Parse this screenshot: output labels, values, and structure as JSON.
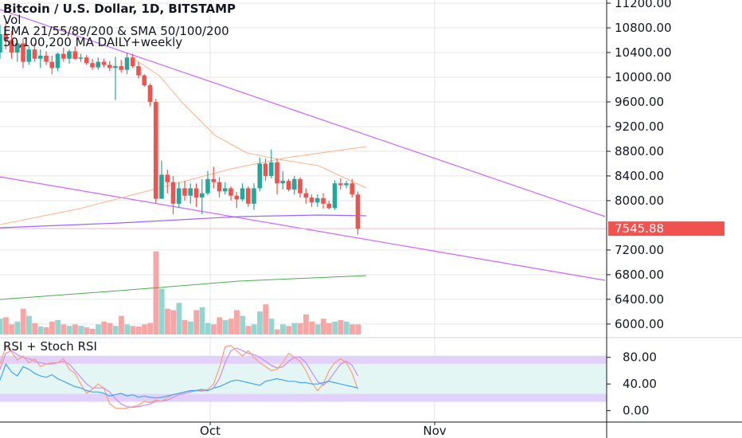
{
  "legend": {
    "title": "Bitcoin / U.S. Dollar, 1D, BITSTAMP",
    "vol": "Vol",
    "ema": "EMA 21/55/89/200 & SMA 50/100/200",
    "ma": "50,100,200 MA DAILY+weekly"
  },
  "rsi_title": "RSI + Stoch RSI",
  "chart_data": {
    "type": "candlestick",
    "symbol": "Bitcoin / U.S. Dollar",
    "interval": "1D",
    "exchange": "BITSTAMP",
    "price_axis": {
      "ticks": [
        "11200.00",
        "10800.00",
        "10400.00",
        "10000.00",
        "9600.00",
        "9200.00",
        "8800.00",
        "8400.00",
        "8000.00",
        "7200.00",
        "6800.00",
        "6400.00",
        "6000.00"
      ],
      "range": [
        5700,
        11300
      ]
    },
    "last_price": "7545.88",
    "time_axis": {
      "labels": [
        "Oct",
        "Nov"
      ]
    },
    "candles": [
      [
        10400,
        10850,
        10300,
        10700
      ],
      [
        10700,
        10900,
        10450,
        10600
      ],
      [
        10600,
        10750,
        10300,
        10400
      ],
      [
        10400,
        10600,
        10250,
        10550
      ],
      [
        10550,
        10620,
        10150,
        10250
      ],
      [
        10250,
        10500,
        10200,
        10450
      ],
      [
        10450,
        10550,
        10250,
        10300
      ],
      [
        10300,
        10450,
        10150,
        10350
      ],
      [
        10350,
        10420,
        10200,
        10250
      ],
      [
        10250,
        10350,
        10050,
        10150
      ],
      [
        10150,
        10400,
        10100,
        10380
      ],
      [
        10380,
        10480,
        10250,
        10300
      ],
      [
        10300,
        10450,
        10220,
        10420
      ],
      [
        10420,
        10500,
        10280,
        10300
      ],
      [
        10300,
        10380,
        10250,
        10320
      ],
      [
        10320,
        10360,
        10200,
        10230
      ],
      [
        10230,
        10300,
        10120,
        10160
      ],
      [
        10160,
        10320,
        10120,
        10250
      ],
      [
        10250,
        10300,
        10160,
        10200
      ],
      [
        10200,
        10260,
        10100,
        10150
      ],
      [
        10150,
        10330,
        9630,
        10180
      ],
      [
        10180,
        10280,
        10080,
        10120
      ],
      [
        10120,
        10400,
        10050,
        10320
      ],
      [
        10320,
        10380,
        10150,
        10180
      ],
      [
        10180,
        10250,
        9980,
        10030
      ],
      [
        10030,
        10050,
        9850,
        9870
      ],
      [
        9870,
        9900,
        9530,
        9600
      ],
      [
        9600,
        9650,
        7950,
        8030
      ],
      [
        8030,
        8650,
        8030,
        8420
      ],
      [
        8420,
        8500,
        8120,
        8300
      ],
      [
        8300,
        8400,
        7780,
        7950
      ],
      [
        7950,
        8300,
        7880,
        8200
      ],
      [
        8200,
        8320,
        8000,
        8080
      ],
      [
        8080,
        8280,
        7950,
        8200
      ],
      [
        8200,
        8280,
        7900,
        8050
      ],
      [
        8050,
        8350,
        7780,
        8120
      ],
      [
        8120,
        8480,
        8090,
        8350
      ],
      [
        8350,
        8550,
        8200,
        8300
      ],
      [
        8300,
        8380,
        8050,
        8150
      ],
      [
        8150,
        8300,
        8100,
        8200
      ],
      [
        8200,
        8230,
        8000,
        8080
      ],
      [
        8080,
        8140,
        7880,
        8020
      ],
      [
        8020,
        8280,
        7990,
        8200
      ],
      [
        8200,
        8230,
        7900,
        7950
      ],
      [
        7950,
        8280,
        7850,
        8200
      ],
      [
        8200,
        8700,
        8150,
        8600
      ],
      [
        8600,
        8680,
        8320,
        8400
      ],
      [
        8400,
        8830,
        8360,
        8620
      ],
      [
        8620,
        8680,
        8100,
        8280
      ],
      [
        8280,
        8480,
        8180,
        8320
      ],
      [
        8320,
        8350,
        8150,
        8180
      ],
      [
        8180,
        8400,
        8100,
        8350
      ],
      [
        8350,
        8380,
        8050,
        8120
      ],
      [
        8120,
        8200,
        7950,
        8050
      ],
      [
        8050,
        8100,
        7900,
        7970
      ],
      [
        7970,
        8100,
        7900,
        8040
      ],
      [
        8040,
        8120,
        7870,
        7950
      ],
      [
        7950,
        8000,
        7860,
        7880
      ],
      [
        7880,
        8330,
        7850,
        8280
      ],
      [
        8280,
        8360,
        8180,
        8250
      ],
      [
        8250,
        8320,
        8200,
        8280
      ],
      [
        8280,
        8350,
        8050,
        8100
      ],
      [
        8100,
        8150,
        7450,
        7545.88
      ]
    ],
    "volume_axis_note": "volume bars share the lower price band",
    "volumes": [
      0.55,
      0.6,
      0.35,
      0.45,
      0.9,
      0.65,
      0.4,
      0.28,
      0.25,
      0.45,
      0.5,
      0.35,
      0.3,
      0.35,
      0.3,
      0.25,
      0.2,
      0.35,
      0.45,
      0.4,
      0.3,
      0.65,
      0.35,
      0.3,
      0.28,
      0.35,
      0.4,
      2.9,
      1.6,
      0.9,
      0.85,
      1.1,
      0.5,
      0.45,
      0.85,
      0.95,
      0.4,
      0.35,
      0.6,
      0.5,
      0.55,
      0.85,
      0.65,
      0.3,
      0.35,
      0.8,
      1.05,
      0.55,
      0.18,
      0.35,
      0.3,
      0.4,
      0.4,
      0.7,
      0.45,
      0.35,
      0.55,
      0.4,
      0.45,
      0.5,
      0.45,
      0.35,
      0.35
    ],
    "rsi_axis": {
      "ticks": [
        "80.00",
        "40.00",
        "0.00"
      ],
      "range": [
        -10,
        110
      ]
    },
    "rsi": [
      46,
      70,
      58,
      52,
      66,
      62,
      56,
      52,
      50,
      54,
      48,
      44,
      40,
      36,
      34,
      30,
      28,
      28,
      26,
      22,
      24,
      26,
      22,
      24,
      20,
      22,
      20,
      19,
      20,
      22,
      24,
      26,
      28,
      30,
      30,
      32,
      30,
      34,
      36,
      40,
      44,
      46,
      44,
      42,
      40,
      38,
      44,
      46,
      48,
      46,
      44,
      44,
      42,
      42,
      40,
      40,
      42,
      44,
      42,
      40,
      38,
      36,
      34
    ],
    "stoch_k": [
      70,
      96,
      88,
      76,
      82,
      72,
      78,
      66,
      70,
      72,
      72,
      78,
      62,
      56,
      40,
      26,
      32,
      40,
      34,
      10,
      4,
      3,
      4,
      6,
      8,
      14,
      12,
      16,
      14,
      20,
      24,
      26,
      28,
      30,
      30,
      29,
      32,
      40,
      64,
      96,
      98,
      90,
      82,
      90,
      80,
      72,
      66,
      60,
      62,
      72,
      86,
      80,
      74,
      60,
      42,
      30,
      40,
      60,
      72,
      78,
      72,
      56,
      32
    ],
    "stoch_d": [
      62,
      86,
      90,
      84,
      80,
      78,
      74,
      72,
      70,
      70,
      72,
      74,
      70,
      60,
      50,
      40,
      34,
      34,
      34,
      28,
      18,
      10,
      6,
      5,
      6,
      8,
      10,
      14,
      14,
      16,
      20,
      24,
      26,
      28,
      30,
      30,
      30,
      34,
      48,
      72,
      90,
      94,
      90,
      86,
      84,
      80,
      74,
      68,
      64,
      66,
      74,
      80,
      80,
      72,
      58,
      44,
      38,
      46,
      58,
      70,
      74,
      68,
      52
    ],
    "rsi_band_upper": [
      70,
      80
    ],
    "rsi_band_lower": [
      20,
      30
    ],
    "colors": {
      "up": "#26a69a",
      "down": "#ef5350",
      "up_volume": "#94d6cf",
      "down_volume": "#f8a6a5",
      "trendline": "#cc66ff",
      "ema_orange": "#ffb48a",
      "ma_purple": "#9966ff",
      "ma_green": "#4caf50",
      "rsi_line": "#42a5f5",
      "stoch_k": "#ff9c7a",
      "stoch_d": "#c98bff",
      "last_price_label_bg": "#ef5350",
      "grid": "#e6e6e6"
    }
  }
}
